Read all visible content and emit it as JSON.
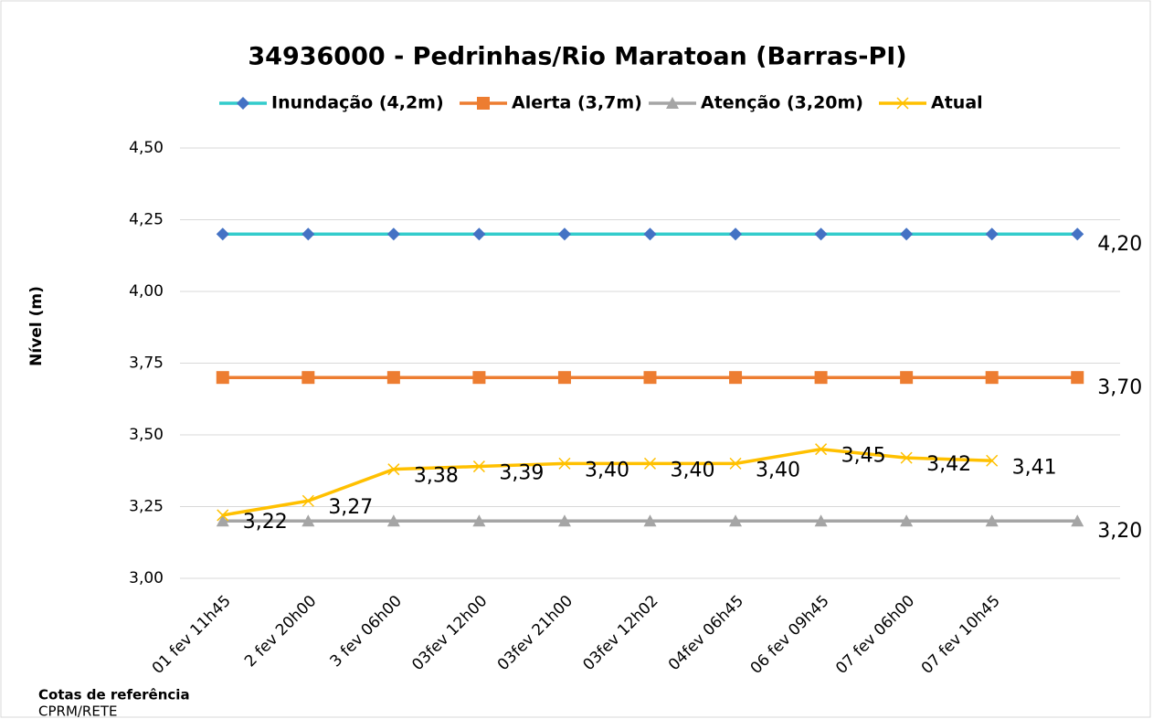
{
  "chart_data": {
    "type": "line",
    "title": "34936000 - Pedrinhas/Rio Maratoan (Barras-PI)",
    "y_label": "Nível (m)",
    "categories": [
      "01 fev 11h45",
      "2 fev 20h00",
      "3 fev 06h00",
      "03fev 12h00",
      "03fev 21h00",
      "03fev 12h02",
      "04fev 06h45",
      "06 fev 09h45",
      "07 fev 06h00",
      "07 fev 10h45",
      null
    ],
    "series": [
      {
        "name": "Inundação (4,2m)",
        "color": "#33cccc",
        "marker_color": "#4472c4",
        "marker": "diamond",
        "values": [
          4.2,
          4.2,
          4.2,
          4.2,
          4.2,
          4.2,
          4.2,
          4.2,
          4.2,
          4.2,
          4.2
        ],
        "value_labels": [
          null,
          null,
          null,
          null,
          null,
          null,
          null,
          null,
          null,
          null,
          "4,20"
        ]
      },
      {
        "name": "Alerta (3,7m)",
        "color": "#ed7d31",
        "marker_color": "#ed7d31",
        "marker": "square",
        "values": [
          3.7,
          3.7,
          3.7,
          3.7,
          3.7,
          3.7,
          3.7,
          3.7,
          3.7,
          3.7,
          3.7
        ],
        "value_labels": [
          null,
          null,
          null,
          null,
          null,
          null,
          null,
          null,
          null,
          null,
          "3,70"
        ]
      },
      {
        "name": "Atenção (3,20m)",
        "color": "#a5a5a5",
        "marker_color": "#a5a5a5",
        "marker": "triangle",
        "values": [
          3.2,
          3.2,
          3.2,
          3.2,
          3.2,
          3.2,
          3.2,
          3.2,
          3.2,
          3.2,
          3.2
        ],
        "value_labels": [
          null,
          null,
          null,
          null,
          null,
          null,
          null,
          null,
          null,
          null,
          "3,20"
        ]
      },
      {
        "name": "Atual",
        "color": "#ffc000",
        "marker_color": "#ffc000",
        "marker": "x",
        "values": [
          3.22,
          3.27,
          3.38,
          3.39,
          3.4,
          3.4,
          3.4,
          3.45,
          3.42,
          3.41,
          null
        ],
        "value_labels": [
          "3,22",
          "3,27",
          "3,38",
          "3,39",
          "3,40",
          "3,40",
          "3,40",
          "3,45",
          "3,42",
          "3,41",
          null
        ]
      }
    ],
    "ylim": [
      3,
      4.5
    ],
    "yticks": [
      {
        "value": 3,
        "label": "3,00"
      },
      {
        "value": 3.25,
        "label": "3,25"
      },
      {
        "value": 3.5,
        "label": "3,50"
      },
      {
        "value": 3.75,
        "label": "3,75"
      },
      {
        "value": 4,
        "label": "4,00"
      },
      {
        "value": 4.25,
        "label": "4,25"
      },
      {
        "value": 4.5,
        "label": "4,50"
      }
    ],
    "grid": true,
    "legend": "top"
  },
  "footer": {
    "title": "Cotas de referência",
    "source": "CPRM/RETE"
  }
}
